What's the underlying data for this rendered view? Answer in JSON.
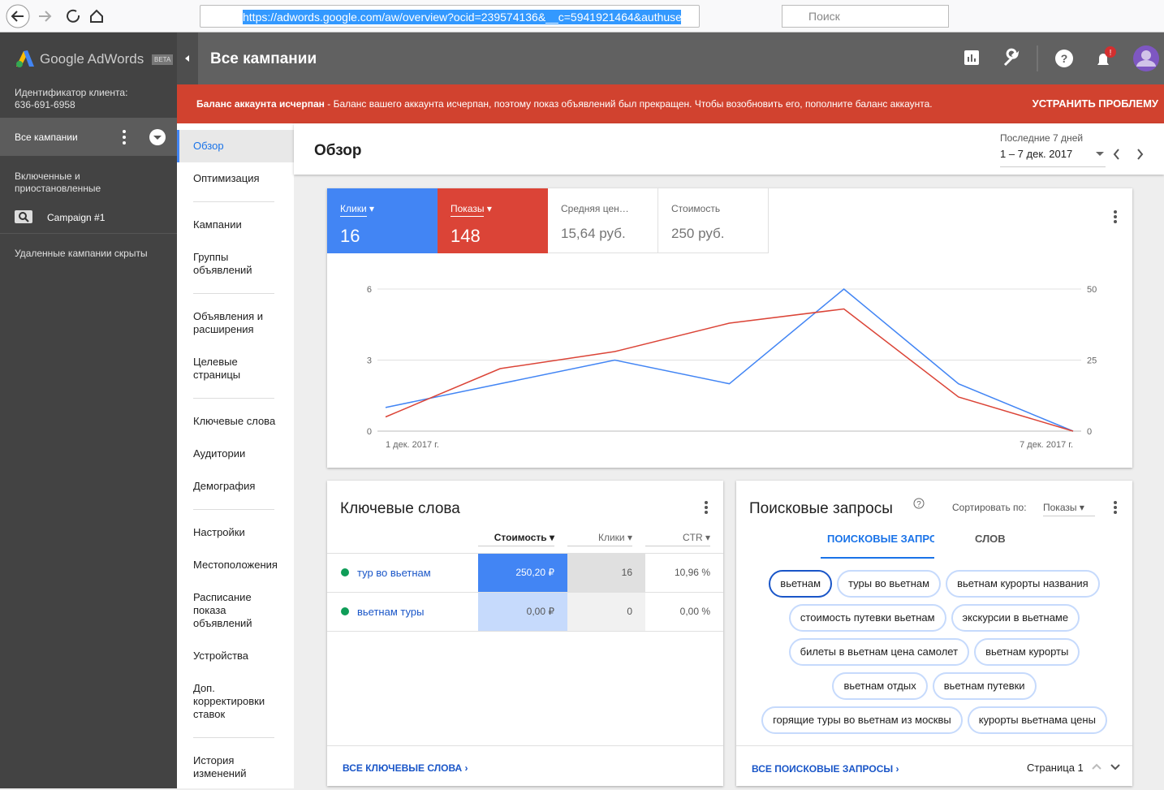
{
  "browser": {
    "url": "https://adwords.google.com/aw/overview?ocid=239574136&__c=5941921464&authuse",
    "search": "Поиск"
  },
  "sidebar": {
    "logo": "Google AdWords",
    "beta": "BETA",
    "client_id_label": "Идентификатор клиента:",
    "client_id": "636-691-6958",
    "all_campaigns": "Все кампании",
    "status": "Включенные и приостановленные",
    "campaign": "Campaign #1",
    "deleted": "Удаленные кампании скрыты"
  },
  "header": {
    "title": "Все кампании"
  },
  "alert": {
    "title": "Баланс аккаунта исчерпан",
    "text": " - Баланс вашего аккаунта исчерпан, поэтому показ объявлений был прекращен. Чтобы возобновить его, пополните баланс аккаунта.",
    "action": "УСТРАНИТЬ ПРОБЛЕМУ"
  },
  "nav": [
    "Обзор",
    "Оптимизация",
    "Кампании",
    "Группы объявлений",
    "Объявления и расширения",
    "Целевые страницы",
    "Ключевые слова",
    "Аудитории",
    "Демография",
    "Настройки",
    "Местоположения",
    "Расписание показа объявлений",
    "Устройства",
    "Доп. корректировки ставок",
    "История изменений"
  ],
  "overview": {
    "title": "Обзор",
    "date_label": "Последние 7 дней",
    "date_range": "1 – 7 дек. 2017"
  },
  "metrics": [
    {
      "value": "16"
    },
    {
      "value": "148"
    },
    {
      "label": "Средняя цен…",
      "value": "15,64 руб."
    },
    {
      "label": "Стоимость",
      "value": "250 руб."
    }
  ],
  "chart_data": {
    "type": "line",
    "categories": [
      "1 дек. 2017 г.",
      null,
      null,
      null,
      null,
      null,
      "7 дек. 2017 г."
    ],
    "series": [
      {
        "name": "Клики",
        "color": "#4285f4",
        "values": [
          1,
          2,
          3,
          2,
          6,
          2,
          0
        ]
      },
      {
        "name": "Показы",
        "color": "#db4437",
        "values": [
          5,
          22,
          28,
          38,
          43,
          12,
          0
        ],
        "axis": "y2"
      }
    ],
    "ylim": [
      0,
      6
    ],
    "yticks": [
      0,
      3,
      6
    ],
    "y2lim": [
      0,
      50
    ],
    "y2ticks": [
      0,
      25,
      50
    ],
    "grid": true
  },
  "keywords": {
    "title": "Ключевые слова",
    "columns": [
      "Стоимость",
      "Клики",
      "CTR"
    ],
    "rows": [
      [
        "тур во вьетнам",
        "250,20 ₽",
        "16",
        "10,96 %"
      ],
      [
        "вьетнам туры",
        "0,00 ₽",
        "0",
        "0,00 %"
      ]
    ],
    "footer": "ВСЕ КЛЮЧЕВЫЕ СЛОВА"
  },
  "queries": {
    "title": "Поисковые запросы",
    "sort_label": "Сортировать по:",
    "sort_value": "Показы",
    "tabs": [
      "ПОИСКОВЫЕ ЗАПРО",
      "СЛОВ"
    ],
    "chips": [
      "вьетнам",
      "туры во вьетнам",
      "вьетнам курорты названия",
      "стоимость путевки вьетнам",
      "экскурсии в вьетнаме",
      "билеты в вьетнам цена самолет",
      "вьетнам курорты",
      "вьетнам отдых",
      "вьетнам путевки",
      "горящие туры во вьетнам из москвы",
      "курорты вьетнама цены"
    ],
    "footer": "ВСЕ ПОИСКОВЫЕ ЗАПРОСЫ",
    "page": "Страница 1"
  }
}
